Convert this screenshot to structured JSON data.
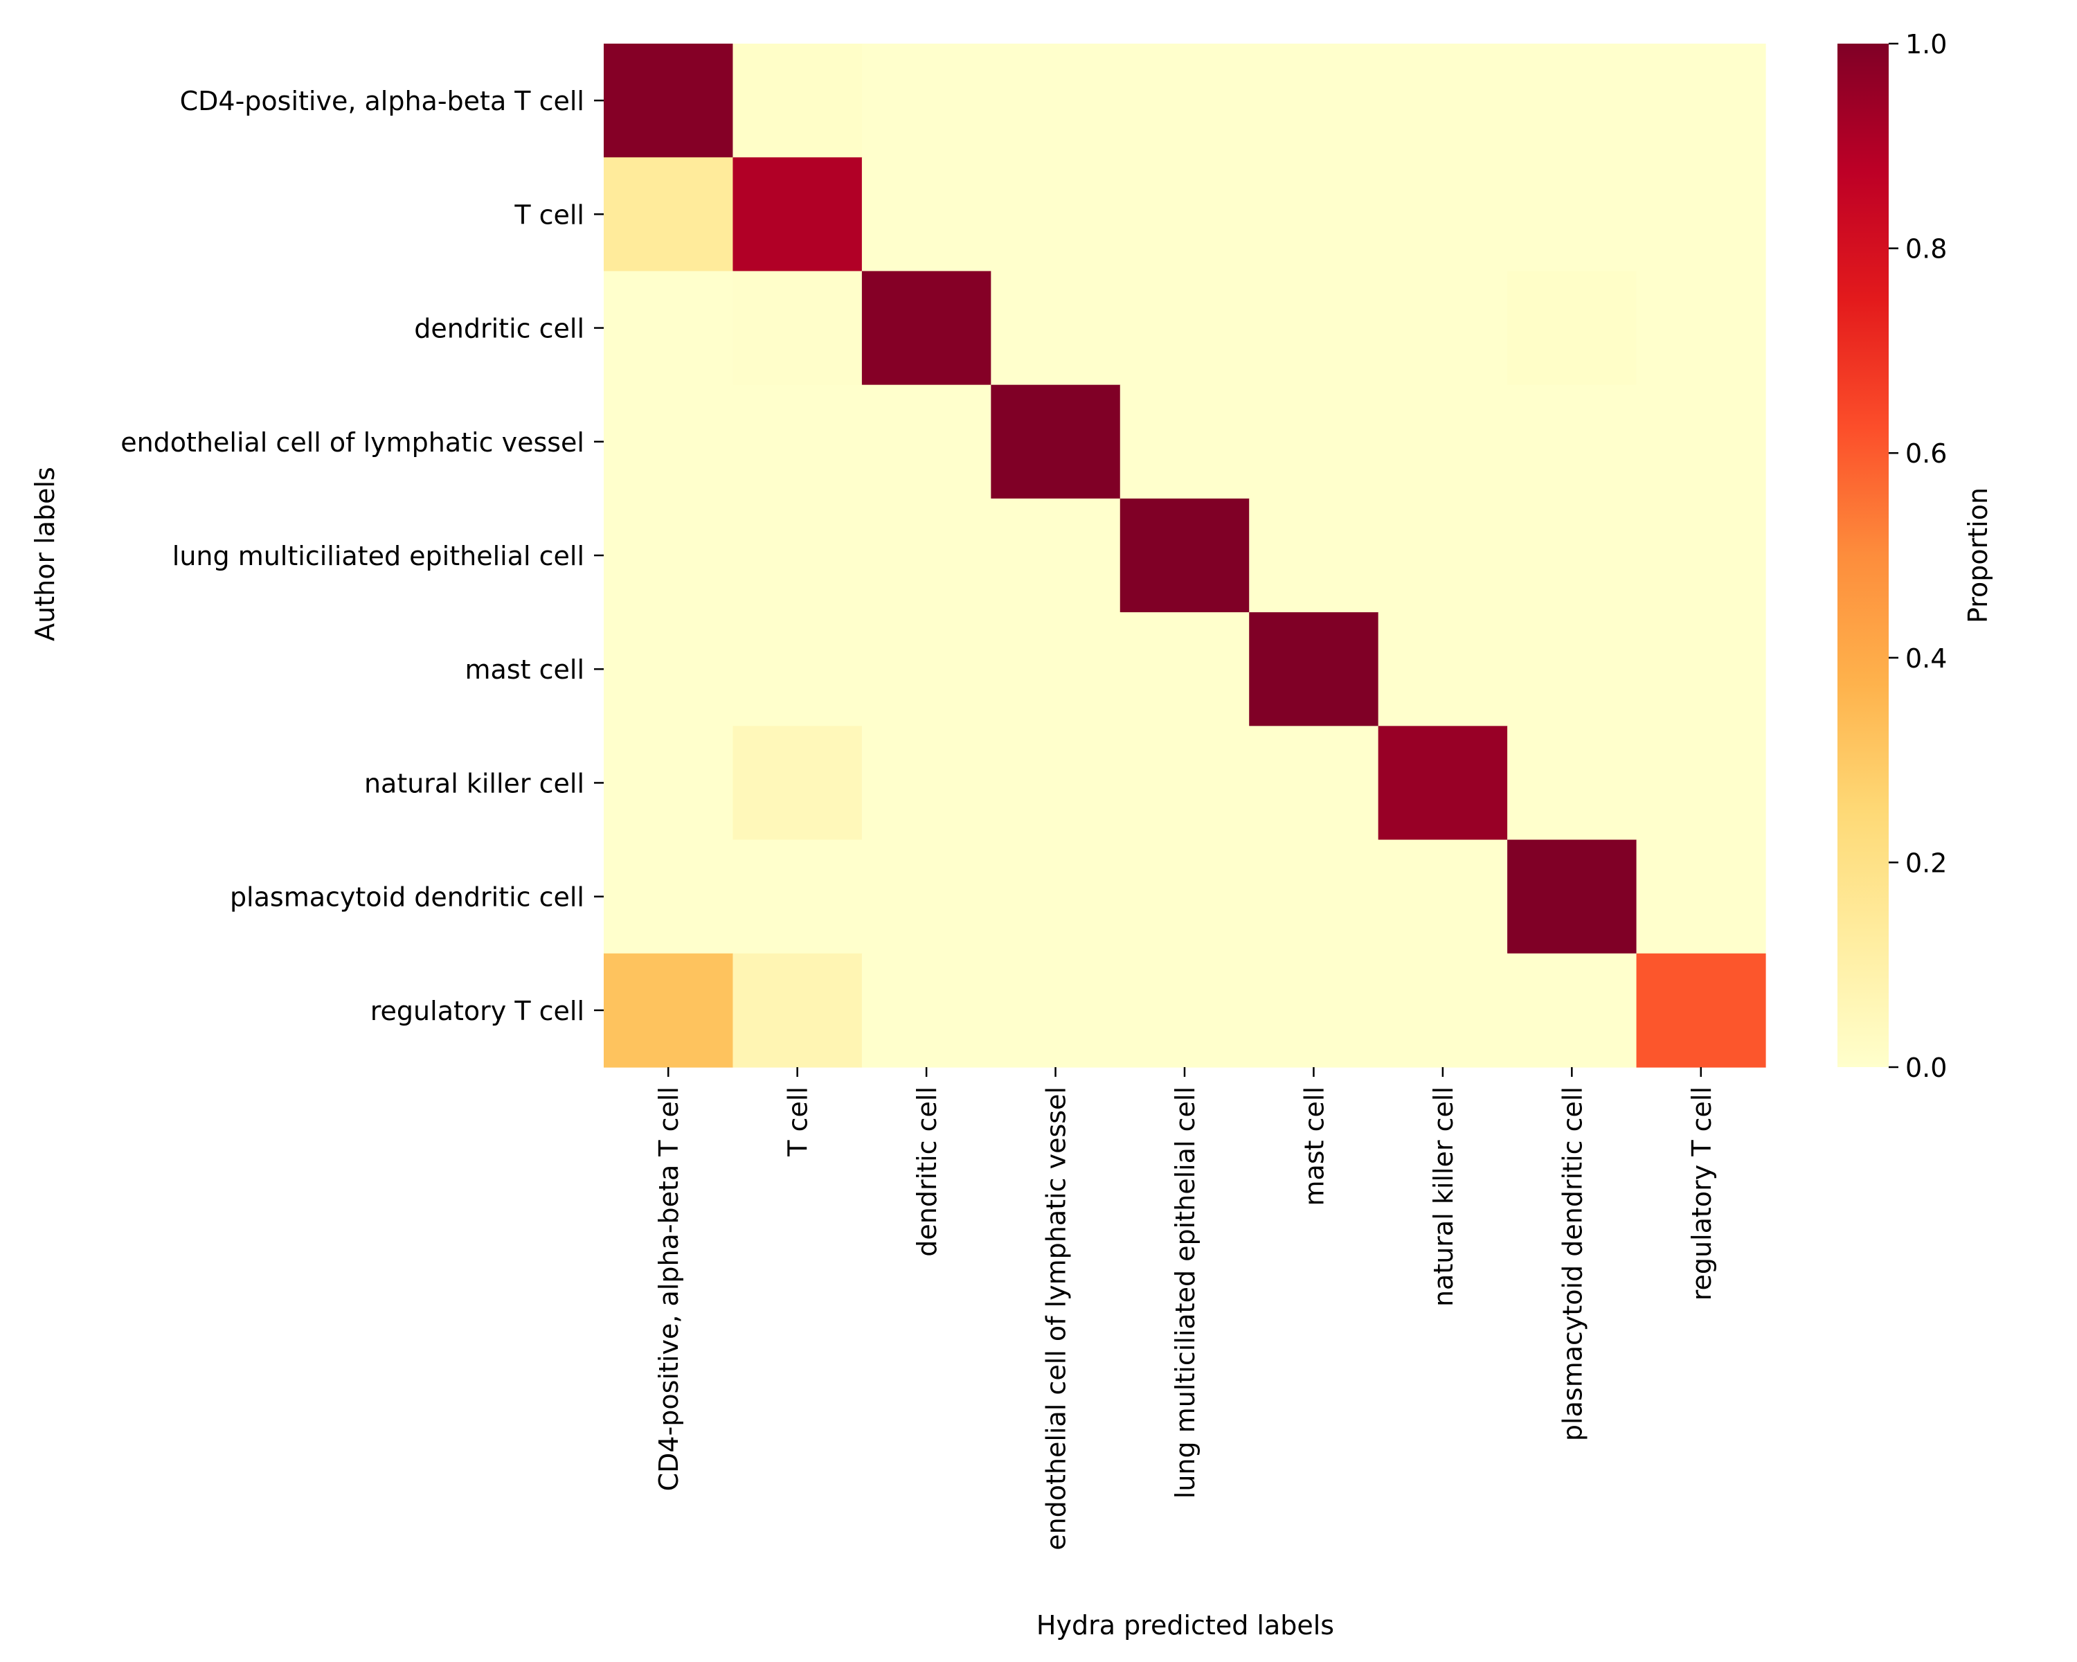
{
  "chart_data": {
    "type": "heatmap",
    "title": "",
    "xlabel": "Hydra predicted labels",
    "ylabel": "Author labels",
    "x_categories": [
      "CD4-positive, alpha-beta T cell",
      "T cell",
      "dendritic cell",
      "endothelial cell of lymphatic vessel",
      "lung multiciliated epithelial cell",
      "mast cell",
      "natural killer cell",
      "plasmacytoid dendritic cell",
      "regulatory T cell"
    ],
    "y_categories": [
      "CD4-positive, alpha-beta T cell",
      "T cell",
      "dendritic cell",
      "endothelial cell of lymphatic vessel",
      "lung multiciliated epithelial cell",
      "mast cell",
      "natural killer cell",
      "plasmacytoid dendritic cell",
      "regulatory T cell"
    ],
    "values": [
      [
        0.99,
        0.01,
        0.0,
        0.0,
        0.0,
        0.0,
        0.0,
        0.0,
        0.0
      ],
      [
        0.14,
        0.9,
        0.0,
        0.0,
        0.0,
        0.0,
        0.0,
        0.0,
        0.0
      ],
      [
        0.0,
        0.005,
        0.99,
        0.0,
        0.0,
        0.0,
        0.0,
        0.01,
        0.0
      ],
      [
        0.0,
        0.0,
        0.0,
        1.0,
        0.0,
        0.0,
        0.0,
        0.0,
        0.0
      ],
      [
        0.0,
        0.0,
        0.0,
        0.0,
        1.0,
        0.0,
        0.0,
        0.0,
        0.0
      ],
      [
        0.0,
        0.0,
        0.0,
        0.0,
        0.0,
        1.0,
        0.0,
        0.0,
        0.0
      ],
      [
        0.0,
        0.05,
        0.0,
        0.0,
        0.0,
        0.0,
        0.95,
        0.0,
        0.0
      ],
      [
        0.0,
        0.0,
        0.0,
        0.0,
        0.0,
        0.0,
        0.0,
        1.0,
        0.0
      ],
      [
        0.32,
        0.07,
        0.0,
        0.0,
        0.0,
        0.0,
        0.0,
        0.0,
        0.61
      ]
    ],
    "colorbar": {
      "label": "Proportion",
      "range": [
        0.0,
        1.0
      ],
      "ticks": [
        0.0,
        0.2,
        0.4,
        0.6,
        0.8,
        1.0
      ],
      "tick_labels": [
        "0.0",
        "0.2",
        "0.4",
        "0.6",
        "0.8",
        "1.0"
      ],
      "colormap": "YlOrRd",
      "colormap_stops": [
        "#ffffcc",
        "#ffeda0",
        "#fed976",
        "#feb24c",
        "#fd8d3c",
        "#fc4e2a",
        "#e31a1c",
        "#bd0026",
        "#800026"
      ]
    },
    "grid": false
  }
}
